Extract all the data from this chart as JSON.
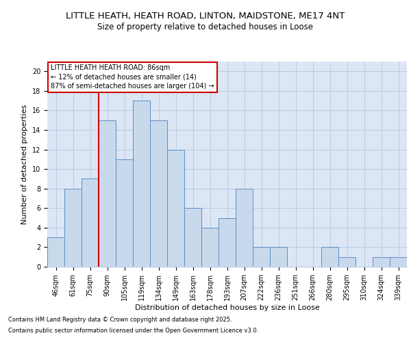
{
  "title1": "LITTLE HEATH, HEATH ROAD, LINTON, MAIDSTONE, ME17 4NT",
  "title2": "Size of property relative to detached houses in Loose",
  "xlabel": "Distribution of detached houses by size in Loose",
  "ylabel": "Number of detached properties",
  "categories": [
    "46sqm",
    "61sqm",
    "75sqm",
    "90sqm",
    "105sqm",
    "119sqm",
    "134sqm",
    "149sqm",
    "163sqm",
    "178sqm",
    "193sqm",
    "207sqm",
    "222sqm",
    "236sqm",
    "251sqm",
    "266sqm",
    "280sqm",
    "295sqm",
    "310sqm",
    "324sqm",
    "339sqm"
  ],
  "values": [
    3,
    8,
    9,
    15,
    11,
    17,
    15,
    12,
    6,
    4,
    5,
    8,
    2,
    2,
    0,
    0,
    2,
    1,
    0,
    1,
    1
  ],
  "bar_color": "#c9d9ec",
  "bar_edge_color": "#5b8ec4",
  "subject_label": "LITTLE HEATH HEATH ROAD: 86sqm",
  "annotation_line1": "← 12% of detached houses are smaller (14)",
  "annotation_line2": "87% of semi-detached houses are larger (104) →",
  "annotation_box_color": "#ffffff",
  "annotation_box_edge": "#cc0000",
  "vline_color": "#cc0000",
  "vline_x_idx": 2.5,
  "ylim": [
    0,
    21
  ],
  "yticks": [
    0,
    2,
    4,
    6,
    8,
    10,
    12,
    14,
    16,
    18,
    20
  ],
  "grid_color": "#b8cce4",
  "bg_color": "#dce6f5",
  "footer1": "Contains HM Land Registry data © Crown copyright and database right 2025.",
  "footer2": "Contains public sector information licensed under the Open Government Licence v3.0.",
  "title_fontsize": 9.5,
  "subtitle_fontsize": 8.5,
  "axis_label_fontsize": 8,
  "tick_fontsize": 7,
  "annotation_fontsize": 7
}
